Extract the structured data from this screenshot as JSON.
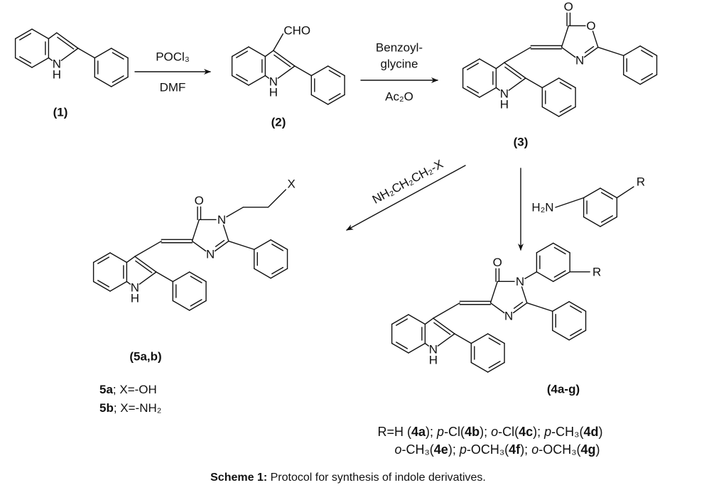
{
  "scheme": {
    "step1": {
      "above": "POCl₃",
      "below": "DMF"
    },
    "step2": {
      "above": [
        "Benzoyl-",
        "glycine"
      ],
      "below": "Ac₂O"
    },
    "step3": {
      "reagent": "NH₂CH₂CH₂-X"
    },
    "step4": {
      "reagent": "H₂N",
      "substituent": "R"
    },
    "compounds": [
      {
        "label": "(1)",
        "atoms": [
          "N",
          "H"
        ]
      },
      {
        "label": "(2)",
        "atoms": [
          "CHO",
          "N",
          "H"
        ]
      },
      {
        "label": "(3)",
        "atoms": [
          "O",
          "O",
          "N",
          "N",
          "H"
        ]
      },
      {
        "label": "(5a,b)",
        "atoms": [
          "X",
          "O",
          "N",
          "N",
          "N",
          "H"
        ]
      },
      {
        "label": "(4a-g)",
        "atoms": [
          "R",
          "O",
          "N",
          "N",
          "N",
          "H"
        ]
      }
    ],
    "substituents_5": [
      [
        "5a",
        "; X=-OH"
      ],
      [
        "5b",
        "; X=-NH₂"
      ]
    ],
    "substituents_4": [
      [
        "R=H (",
        "4a",
        "); ",
        "p",
        "-Cl(",
        "4b",
        "); ",
        "o",
        "-Cl(",
        "4c",
        "); ",
        "p",
        "-CH₃(",
        "4d",
        ")"
      ],
      [
        "o",
        "-CH₃(",
        "4e",
        "); ",
        "p",
        "-OCH₃(",
        "4f",
        "); ",
        "o",
        "-OCH₃(",
        "4g",
        ")"
      ]
    ]
  },
  "caption": {
    "label": "Scheme 1:",
    "text": " Protocol for synthesis of indole derivatives."
  }
}
